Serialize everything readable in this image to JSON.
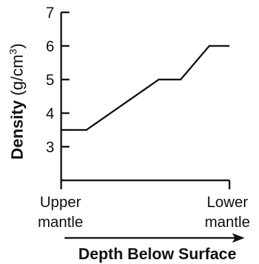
{
  "chart_data": {
    "type": "line",
    "ylabel_bold": "Density",
    "ylabel_unit": "(g/cm",
    "ylabel_unit_sup": "3",
    "ylabel_unit_close": ")",
    "xlabel": "Depth Below Surface",
    "x_ends": {
      "left": [
        "Upper",
        "mantle"
      ],
      "right": [
        "Lower",
        "mantle"
      ]
    },
    "yticks": [
      3,
      4,
      5,
      6,
      7
    ],
    "ylim": [
      2,
      7
    ],
    "xlim": [
      0,
      1
    ],
    "grid": false,
    "series": [
      {
        "x": [
          0.0,
          0.15,
          0.58,
          0.71,
          0.88,
          1.0
        ],
        "values": [
          3.5,
          3.5,
          5.0,
          5.0,
          6.0,
          6.0
        ]
      }
    ]
  }
}
